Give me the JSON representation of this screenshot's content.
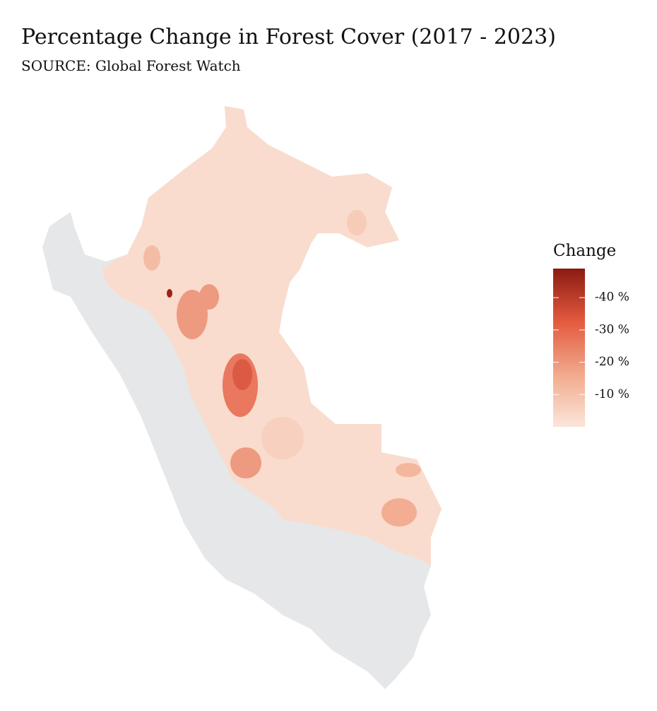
{
  "chart_data": {
    "type": "choropleth",
    "title": "Percentage Change in Forest Cover (2017 - 2023)",
    "subtitle": "SOURCE: Global Forest Watch",
    "legend_title": "Change",
    "colorbar_lim": [
      0,
      -49
    ],
    "colorbar_colors": [
      "#fbe6da",
      "#f2a98c",
      "#e35a3f",
      "#8b1a12"
    ],
    "colorbar_ticks": [
      {
        "value": -40,
        "label": "-40 %"
      },
      {
        "value": -30,
        "label": "-30 %"
      },
      {
        "value": -20,
        "label": "-20 %"
      },
      {
        "value": -10,
        "label": "-10 %"
      }
    ]
  }
}
